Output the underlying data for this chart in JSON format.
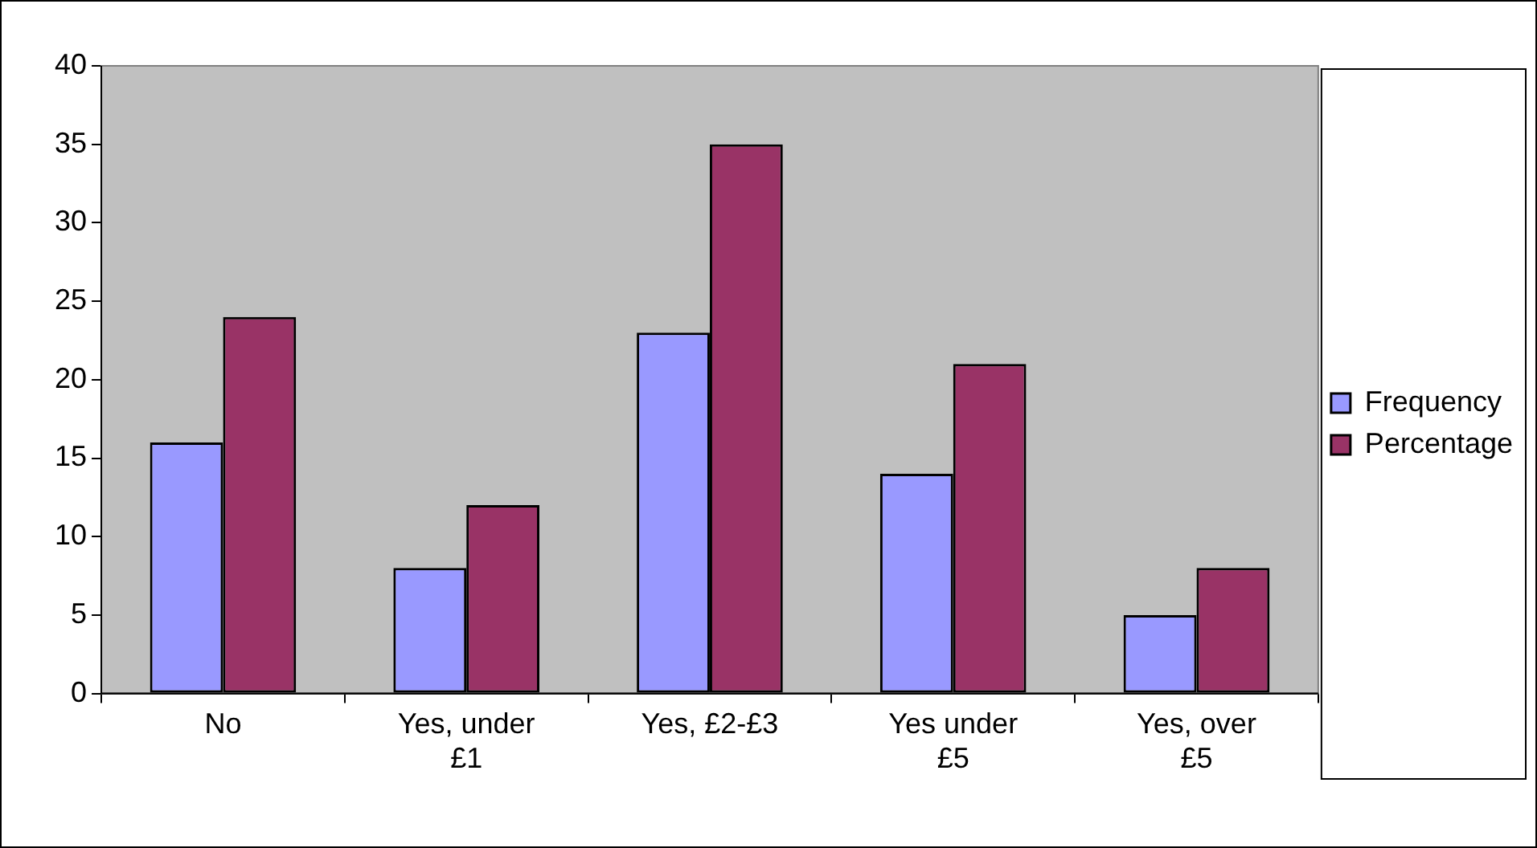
{
  "chart_data": {
    "type": "bar",
    "categories": [
      "No",
      "Yes, under £1",
      "Yes, £2-£3",
      "Yes under £5",
      "Yes, over £5"
    ],
    "series": [
      {
        "name": "Frequency",
        "color": "#9999ff",
        "values": [
          16,
          8,
          23,
          14,
          5
        ]
      },
      {
        "name": "Percentage",
        "color": "#993366",
        "values": [
          24,
          12,
          35,
          21,
          8
        ]
      }
    ],
    "ylim": [
      0,
      40
    ],
    "yticks": [
      0,
      5,
      10,
      15,
      20,
      25,
      30,
      35,
      40
    ],
    "grid": false,
    "legend": "right"
  }
}
